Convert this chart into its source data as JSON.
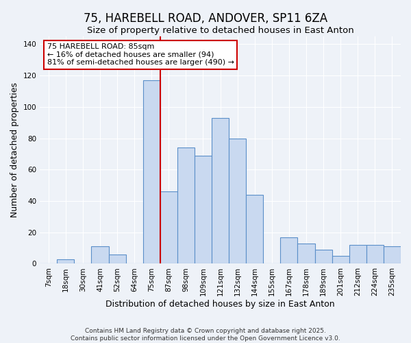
{
  "title": "75, HAREBELL ROAD, ANDOVER, SP11 6ZA",
  "subtitle": "Size of property relative to detached houses in East Anton",
  "xlabel": "Distribution of detached houses by size in East Anton",
  "ylabel": "Number of detached properties",
  "bin_labels": [
    "7sqm",
    "18sqm",
    "30sqm",
    "41sqm",
    "52sqm",
    "64sqm",
    "75sqm",
    "87sqm",
    "98sqm",
    "109sqm",
    "121sqm",
    "132sqm",
    "144sqm",
    "155sqm",
    "167sqm",
    "178sqm",
    "189sqm",
    "201sqm",
    "212sqm",
    "224sqm",
    "235sqm"
  ],
  "bar_heights": [
    0,
    3,
    0,
    11,
    6,
    0,
    117,
    46,
    74,
    69,
    93,
    80,
    44,
    0,
    17,
    13,
    9,
    5,
    12,
    12,
    11
  ],
  "bar_color": "#c9d9f0",
  "bar_edge_color": "#5b8fc9",
  "vline_x_index": 6,
  "vline_color": "#cc0000",
  "annotation_title": "75 HAREBELL ROAD: 85sqm",
  "annotation_line1": "← 16% of detached houses are smaller (94)",
  "annotation_line2": "81% of semi-detached houses are larger (490) →",
  "annotation_box_color": "#ffffff",
  "annotation_box_edge": "#cc0000",
  "ylim": [
    0,
    145
  ],
  "yticks": [
    0,
    20,
    40,
    60,
    80,
    100,
    120,
    140
  ],
  "footer1": "Contains HM Land Registry data © Crown copyright and database right 2025.",
  "footer2": "Contains public sector information licensed under the Open Government Licence v3.0.",
  "bg_color": "#eef2f8",
  "grid_color": "#ffffff",
  "title_fontsize": 12,
  "subtitle_fontsize": 9.5,
  "axis_label_fontsize": 9,
  "tick_fontsize": 7.5,
  "footer_fontsize": 6.5,
  "ann_fontsize": 8
}
